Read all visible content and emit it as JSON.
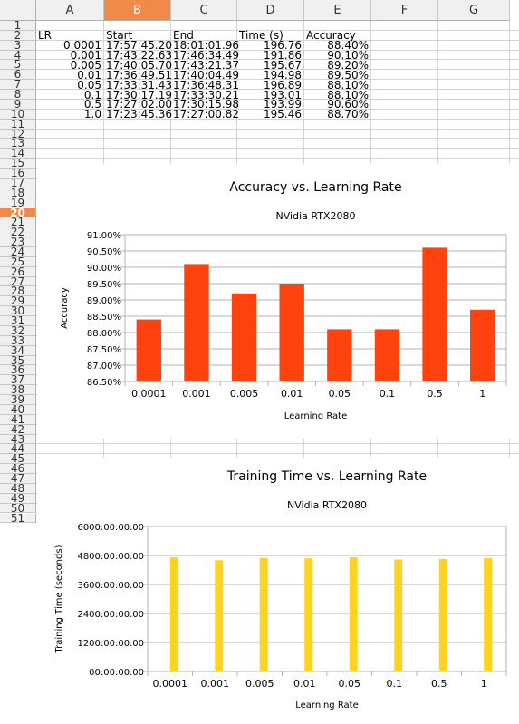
{
  "spreadsheet": {
    "columns": [
      "A",
      "B",
      "C",
      "D",
      "E",
      "F",
      "G"
    ],
    "selected_column": "B",
    "selected_row": "20",
    "rows": [
      "1",
      "2",
      "3",
      "4",
      "5",
      "6",
      "7",
      "8",
      "9",
      "10",
      "11",
      "12",
      "13",
      "14",
      "15",
      "16",
      "17",
      "18",
      "19",
      "20",
      "21",
      "22",
      "23",
      "24",
      "25",
      "26",
      "27",
      "28",
      "29",
      "30",
      "31",
      "32",
      "33",
      "34",
      "35",
      "36",
      "37",
      "38",
      "39",
      "40",
      "41",
      "42",
      "43",
      "44",
      "45",
      "46",
      "47",
      "48",
      "49",
      "50",
      "51"
    ],
    "headers": {
      "lr": "LR",
      "start": "Start",
      "end": "End",
      "time": "Time (s)",
      "accuracy": "Accuracy"
    },
    "table": [
      {
        "lr": "0.0001",
        "start": "17:57:45.20",
        "end": "18:01:01.96",
        "time": "196.76",
        "accuracy": "88.40%"
      },
      {
        "lr": "0.001",
        "start": "17:43:22.63",
        "end": "17:46:34.49",
        "time": "191.86",
        "accuracy": "90.10%"
      },
      {
        "lr": "0.005",
        "start": "17:40:05.70",
        "end": "17:43:21.37",
        "time": "195.67",
        "accuracy": "89.20%"
      },
      {
        "lr": "0.01",
        "start": "17:36:49.51",
        "end": "17:40:04.49",
        "time": "194.98",
        "accuracy": "89.50%"
      },
      {
        "lr": "0.05",
        "start": "17:33:31.43",
        "end": "17:36:48.31",
        "time": "196.89",
        "accuracy": "88.10%"
      },
      {
        "lr": "0.1",
        "start": "17:30:17.19",
        "end": "17:33:30.21",
        "time": "193.01",
        "accuracy": "88.10%"
      },
      {
        "lr": "0.5",
        "start": "17:27:02.00",
        "end": "17:30:15.98",
        "time": "193.99",
        "accuracy": "90.60%"
      },
      {
        "lr": "1.0",
        "start": "17:23:45.36",
        "end": "17:27:00.82",
        "time": "195.46",
        "accuracy": "88.70%"
      }
    ]
  },
  "chart_data": [
    {
      "type": "bar",
      "title": "Accuracy vs. Learning Rate",
      "subtitle": "NVidia RTX2080",
      "xlabel": "Learning Rate",
      "ylabel": "Accuracy",
      "categories": [
        "0.0001",
        "0.001",
        "0.005",
        "0.01",
        "0.05",
        "0.1",
        "0.5",
        "1"
      ],
      "values": [
        88.4,
        90.1,
        89.2,
        89.5,
        88.1,
        88.1,
        90.6,
        88.7
      ],
      "ylim": [
        86.5,
        91.0
      ],
      "yticks": [
        86.5,
        87.0,
        87.5,
        88.0,
        88.5,
        89.0,
        89.5,
        90.0,
        90.5,
        91.0
      ],
      "ytick_labels": [
        "86.50%",
        "87.00%",
        "87.50%",
        "88.00%",
        "88.50%",
        "89.00%",
        "89.50%",
        "90.00%",
        "90.50%",
        "91.00%"
      ],
      "color": "#ff420e",
      "grid": true,
      "legend": "none"
    },
    {
      "type": "bar",
      "title": "Training Time vs. Learning Rate",
      "subtitle": "NVidia RTX2080",
      "xlabel": "Learning Rate",
      "ylabel": "Training Time (seconds)",
      "categories": [
        "0.0001",
        "0.001",
        "0.005",
        "0.01",
        "0.05",
        "0.1",
        "0.5",
        "1"
      ],
      "series_colors": [
        "#004586",
        "#ffd320"
      ],
      "series": [
        {
          "values": [
            0.002,
            0.002,
            0.002,
            0.002,
            0.002,
            0.002,
            0.002,
            0.002
          ]
        },
        {
          "values": [
            4722,
            4605,
            4696,
            4680,
            4725,
            4632,
            4656,
            4691
          ]
        }
      ],
      "ylim": [
        0,
        6000
      ],
      "yticks": [
        0,
        1200,
        2400,
        3600,
        4800,
        6000
      ],
      "ytick_labels": [
        "00:00:00.00",
        "1200:00:00.00",
        "2400:00:00.00",
        "3600:00:00.00",
        "4800:00:00.00",
        "6000:00:00.00"
      ],
      "grid": true,
      "legend": "none"
    }
  ]
}
